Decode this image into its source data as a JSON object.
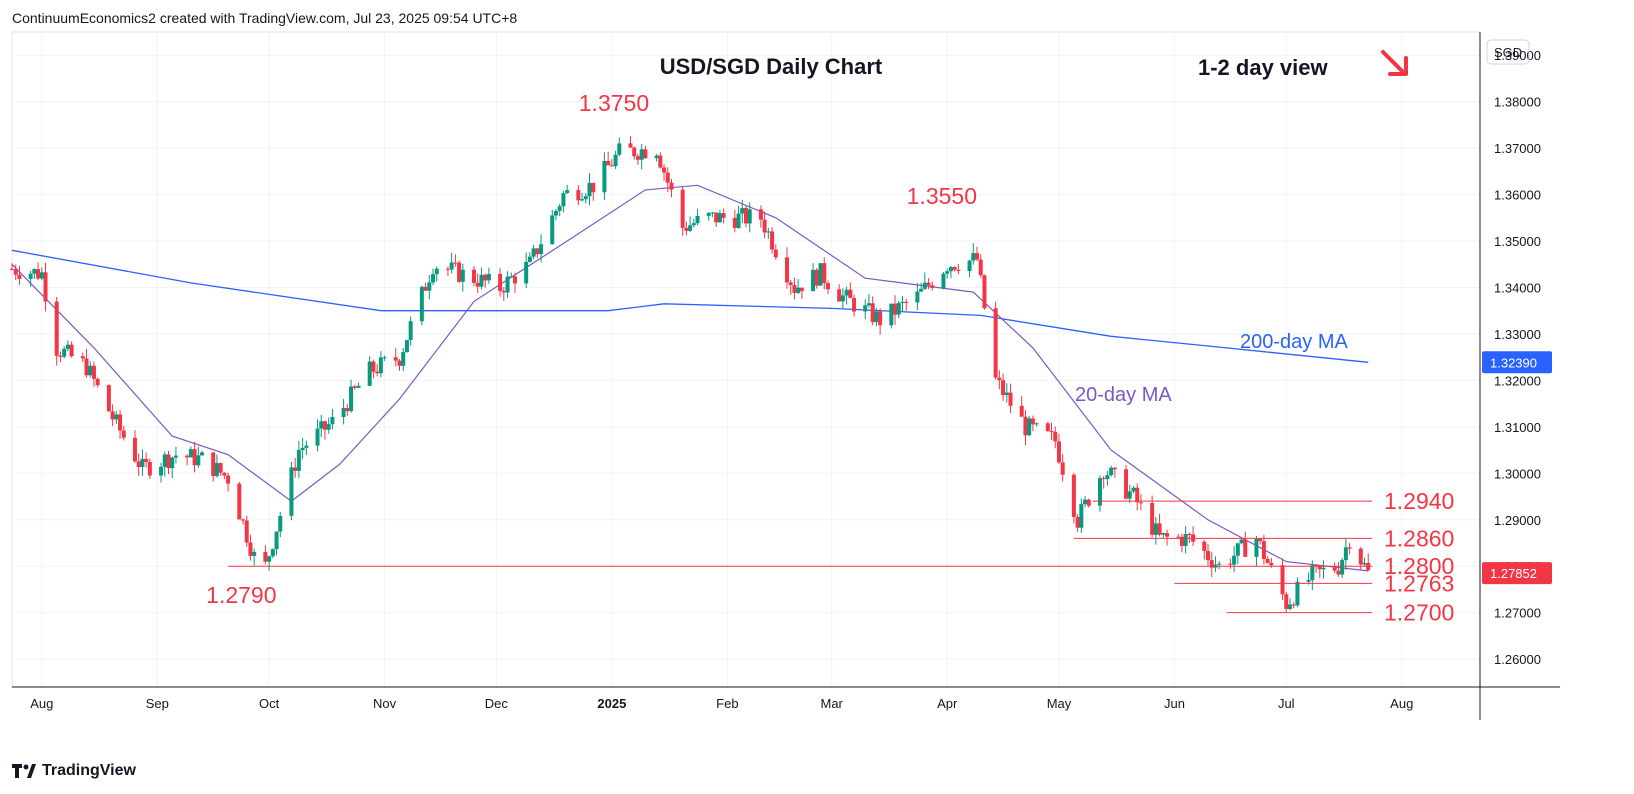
{
  "header": {
    "attribution": "ContinuumEconomics2 created with TradingView.com, Jul 23, 2025 09:54 UTC+8"
  },
  "footer": {
    "brand": "TradingView"
  },
  "colors": {
    "up": "#089981",
    "down": "#f23645",
    "ma20": "#7e57c2",
    "ma200": "#2962ff",
    "level": "#f23645",
    "priceTag": "#2962ff",
    "lastTag": "#f23645"
  },
  "chart_data": {
    "type": "candlestick",
    "title": "USD/SGD Daily Chart",
    "view_label": "1-2 day view",
    "view_arrow": "arrow-down-right-icon",
    "currency": "SGD",
    "ylim": [
      1.254,
      1.395
    ],
    "y_ticks": [
      "1.39000",
      "1.38000",
      "1.37000",
      "1.36000",
      "1.35000",
      "1.34000",
      "1.33000",
      "1.32000",
      "1.31000",
      "1.30000",
      "1.29000",
      "1.28000",
      "1.27000",
      "1.26000"
    ],
    "x_ticks": [
      "Aug",
      "Sep",
      "Oct",
      "Nov",
      "Dec",
      "2025",
      "Feb",
      "Mar",
      "Apr",
      "May",
      "Jun",
      "Jul",
      "Aug"
    ],
    "x_ticks_bold": [
      "2025"
    ],
    "price_tags": [
      {
        "value": 1.3239,
        "label": "1.32390",
        "series": "ma200"
      },
      {
        "value": 1.27852,
        "label": "1.27852",
        "series": "last"
      }
    ],
    "levels": [
      {
        "label": "1.3750",
        "value": 1.375,
        "type": "peak-label"
      },
      {
        "label": "1.3550",
        "value": 1.355,
        "type": "peak-label"
      },
      {
        "label": "1.2790",
        "value": 1.279,
        "type": "trough-label"
      },
      {
        "label": "1.2940",
        "value": 1.294,
        "type": "line"
      },
      {
        "label": "1.2860",
        "value": 1.286,
        "type": "line"
      },
      {
        "label": "1.2800",
        "value": 1.28,
        "type": "line"
      },
      {
        "label": "1.2763",
        "value": 1.2763,
        "type": "line"
      },
      {
        "label": "1.2700",
        "value": 1.27,
        "type": "line"
      }
    ],
    "series": [
      {
        "name": "200-day MA",
        "color": "#2962ff"
      },
      {
        "name": "20-day MA",
        "color": "#7e57c2"
      }
    ],
    "close_path": [
      {
        "date": "2024-07-24",
        "close": 1.344
      },
      {
        "date": "2024-08-01",
        "close": 1.343
      },
      {
        "date": "2024-08-05",
        "close": 1.327
      },
      {
        "date": "2024-08-13",
        "close": 1.323
      },
      {
        "date": "2024-08-20",
        "close": 1.312
      },
      {
        "date": "2024-08-28",
        "close": 1.301
      },
      {
        "date": "2024-09-06",
        "close": 1.304
      },
      {
        "date": "2024-09-13",
        "close": 1.303
      },
      {
        "date": "2024-09-20",
        "close": 1.299
      },
      {
        "date": "2024-09-27",
        "close": 1.282
      },
      {
        "date": "2024-09-30",
        "close": 1.28
      },
      {
        "date": "2024-10-09",
        "close": 1.305
      },
      {
        "date": "2024-10-18",
        "close": 1.311
      },
      {
        "date": "2024-10-28",
        "close": 1.322
      },
      {
        "date": "2024-11-05",
        "close": 1.325
      },
      {
        "date": "2024-11-14",
        "close": 1.345
      },
      {
        "date": "2024-11-25",
        "close": 1.342
      },
      {
        "date": "2024-12-02",
        "close": 1.34
      },
      {
        "date": "2024-12-10",
        "close": 1.345
      },
      {
        "date": "2024-12-19",
        "close": 1.36
      },
      {
        "date": "2024-12-27",
        "close": 1.362
      },
      {
        "date": "2025-01-03",
        "close": 1.369
      },
      {
        "date": "2025-01-13",
        "close": 1.37
      },
      {
        "date": "2025-01-20",
        "close": 1.353
      },
      {
        "date": "2025-01-27",
        "close": 1.355
      },
      {
        "date": "2025-02-03",
        "close": 1.355
      },
      {
        "date": "2025-02-10",
        "close": 1.355
      },
      {
        "date": "2025-02-19",
        "close": 1.34
      },
      {
        "date": "2025-02-26",
        "close": 1.343
      },
      {
        "date": "2025-03-04",
        "close": 1.338
      },
      {
        "date": "2025-03-14",
        "close": 1.333
      },
      {
        "date": "2025-03-24",
        "close": 1.338
      },
      {
        "date": "2025-04-01",
        "close": 1.345
      },
      {
        "date": "2025-04-09",
        "close": 1.346
      },
      {
        "date": "2025-04-14",
        "close": 1.32
      },
      {
        "date": "2025-04-22",
        "close": 1.31
      },
      {
        "date": "2025-04-30",
        "close": 1.307
      },
      {
        "date": "2025-05-06",
        "close": 1.29
      },
      {
        "date": "2025-05-13",
        "close": 1.301
      },
      {
        "date": "2025-05-21",
        "close": 1.295
      },
      {
        "date": "2025-05-28",
        "close": 1.286
      },
      {
        "date": "2025-06-05",
        "close": 1.286
      },
      {
        "date": "2025-06-13",
        "close": 1.28
      },
      {
        "date": "2025-06-23",
        "close": 1.286
      },
      {
        "date": "2025-07-01",
        "close": 1.272
      },
      {
        "date": "2025-07-08",
        "close": 1.278
      },
      {
        "date": "2025-07-15",
        "close": 1.28
      },
      {
        "date": "2025-07-18",
        "close": 1.286
      },
      {
        "date": "2025-07-23",
        "close": 1.2785
      }
    ],
    "ma200_path": [
      {
        "date": "2024-07-24",
        "value": 1.348
      },
      {
        "date": "2024-09-10",
        "value": 1.341
      },
      {
        "date": "2024-10-31",
        "value": 1.335
      },
      {
        "date": "2024-12-31",
        "value": 1.335
      },
      {
        "date": "2025-01-15",
        "value": 1.3365
      },
      {
        "date": "2025-03-01",
        "value": 1.3355
      },
      {
        "date": "2025-04-10",
        "value": 1.334
      },
      {
        "date": "2025-05-15",
        "value": 1.3295
      },
      {
        "date": "2025-06-15",
        "value": 1.327
      },
      {
        "date": "2025-07-23",
        "value": 1.3239
      }
    ],
    "ma20_path": [
      {
        "date": "2024-07-24",
        "value": 1.345
      },
      {
        "date": "2024-08-15",
        "value": 1.327
      },
      {
        "date": "2024-09-05",
        "value": 1.308
      },
      {
        "date": "2024-09-20",
        "value": 1.304
      },
      {
        "date": "2024-10-07",
        "value": 1.294
      },
      {
        "date": "2024-10-20",
        "value": 1.302
      },
      {
        "date": "2024-11-05",
        "value": 1.316
      },
      {
        "date": "2024-11-25",
        "value": 1.337
      },
      {
        "date": "2024-12-20",
        "value": 1.35
      },
      {
        "date": "2025-01-10",
        "value": 1.361
      },
      {
        "date": "2025-01-24",
        "value": 1.362
      },
      {
        "date": "2025-02-14",
        "value": 1.355
      },
      {
        "date": "2025-03-10",
        "value": 1.342
      },
      {
        "date": "2025-04-08",
        "value": 1.339
      },
      {
        "date": "2025-04-24",
        "value": 1.327
      },
      {
        "date": "2025-05-15",
        "value": 1.305
      },
      {
        "date": "2025-06-10",
        "value": 1.29
      },
      {
        "date": "2025-07-01",
        "value": 1.281
      },
      {
        "date": "2025-07-23",
        "value": 1.279
      }
    ]
  }
}
